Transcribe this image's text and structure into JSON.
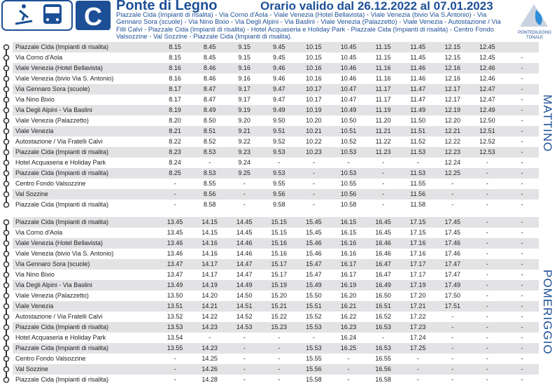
{
  "header": {
    "line": "C",
    "title": "Ponte di Legno",
    "validity": "Orario valido dal 26.12.2022 al 07.01.2023",
    "route": "Piazzale Cida (Impianti di risalita) - Via Corno d'Aola - Viale Venezia (Hotel Bellavista) - Viale Venezia (bivio Via S.Antonio) - Via Gennaro Sora (scuole) - Via Nino Bixio - Via Degli Alpini - Via Baslini - Viale Venezia (Palazzetto) - Viale Venezia - Autostazione / Via Filli Calvi - Piazzale Cida (Impianti di risalita) - Hotel Acquaseria e Holiday Park - Piazzale Cida (Impianti di risalita) - Centro Fondo Valsozzine - Val Sozzine - Piazzale Cida (Impianti di risalita).",
    "logo": "PONTEDILEGNO TONALE"
  },
  "sections": [
    {
      "label": "MATTINO",
      "rows": [
        {
          "stop": "Piazzale Cida (Impianti di risalita)",
          "times": [
            "8.15",
            "8.45",
            "9.15",
            "9.45",
            "10.15",
            "10.45",
            "11.15",
            "11.45",
            "12.15",
            "12.45",
            null
          ]
        },
        {
          "stop": "Via Corno d'Aola",
          "times": [
            "8.15",
            "8.45",
            "9.15",
            "9.45",
            "10.15",
            "10.45",
            "11.15",
            "11.45",
            "12.15",
            "12.45",
            "-"
          ]
        },
        {
          "stop": "Viale Venezia (Hotel Bellavista)",
          "times": [
            "8.16",
            "8.46",
            "9.16",
            "9.46",
            "10.16",
            "10.46",
            "11.16",
            "11.46",
            "12.16",
            "12.46",
            "-"
          ]
        },
        {
          "stop": "Viale Venezia (bivio Via S. Antonio)",
          "times": [
            "8.16",
            "8.46",
            "9.16",
            "9.46",
            "10.16",
            "10.46",
            "11.16",
            "11.46",
            "12.16",
            "12.46",
            "-"
          ]
        },
        {
          "stop": "Via Gennaro Sora (scuole)",
          "times": [
            "8.17",
            "8.47",
            "9.17",
            "9.47",
            "10.17",
            "10.47",
            "11.17",
            "11.47",
            "12.17",
            "12.47",
            "-"
          ]
        },
        {
          "stop": "Via Nino Bixio",
          "times": [
            "8.17",
            "8.47",
            "9.17",
            "9.47",
            "10.17",
            "10.47",
            "11.17",
            "11.47",
            "12.17",
            "12.47",
            "-"
          ]
        },
        {
          "stop": "Via Degli Alpini - Via Baslini",
          "times": [
            "8.19",
            "8.49",
            "9.19",
            "9.49",
            "10.19",
            "10.49",
            "11.19",
            "11.49",
            "12.19",
            "12.49",
            "-"
          ]
        },
        {
          "stop": "Viale Venezia (Palazzetto)",
          "times": [
            "8.20",
            "8.50",
            "9.20",
            "9.50",
            "10.20",
            "10.50",
            "11.20",
            "11.50",
            "12.20",
            "12.50",
            "-"
          ]
        },
        {
          "stop": "Viale Venezia",
          "times": [
            "8.21",
            "8.51",
            "9.21",
            "9.51",
            "10.21",
            "10.51",
            "11.21",
            "11.51",
            "12.21",
            "12.51",
            "-"
          ]
        },
        {
          "stop": "Autostazione / Via Fratelli Calvi",
          "times": [
            "8.22",
            "8.52",
            "9.22",
            "9.52",
            "10.22",
            "10.52",
            "11.22",
            "11.52",
            "12.22",
            "12.52",
            "-"
          ]
        },
        {
          "stop": "Piazzale Cida (Impianti di risalita)",
          "times": [
            "8.23",
            "8.53",
            "9.23",
            "9.53",
            "10.23",
            "10.53",
            "11.23",
            "11.53",
            "12.23",
            "12.53",
            "-"
          ]
        },
        {
          "stop": "Hotel Acquaseria e Holiday Park",
          "times": [
            "8.24",
            "-",
            "9.24",
            "-",
            "-",
            "-",
            "-",
            "-",
            "12.24",
            "-",
            "-"
          ]
        },
        {
          "stop": "Piazzale Cida (Impianti di risalita)",
          "times": [
            "8.25",
            "8.53",
            "9.25",
            "9.53",
            "-",
            "10.53",
            "-",
            "11.53",
            "12.25",
            "-",
            "-"
          ]
        },
        {
          "stop": "Centro Fondo Valsozzine",
          "times": [
            "-",
            "8.55",
            "-",
            "9.55",
            "-",
            "10.55",
            "-",
            "11.55",
            "-",
            "-",
            "-"
          ]
        },
        {
          "stop": "Val Sozzine",
          "times": [
            "-",
            "8.56",
            "-",
            "9.56",
            "-",
            "10.56",
            "-",
            "11.56",
            "-",
            "-",
            "-"
          ]
        },
        {
          "stop": "Piazzale Cida (Impianti di risalita)",
          "times": [
            "-",
            "8.58",
            "-",
            "9.58",
            "-",
            "10.58",
            "-",
            "11.58",
            "-",
            "-",
            "-"
          ]
        }
      ]
    },
    {
      "label": "POMERIGGIO",
      "rows": [
        {
          "stop": "Piazzale Cida (Impianti di risalita)",
          "times": [
            "13.45",
            "14.15",
            "14.45",
            "15.15",
            "15.45",
            "16.15",
            "16.45",
            "17.15",
            "17.45",
            "-",
            "-"
          ]
        },
        {
          "stop": "Via Corno d'Aola",
          "times": [
            "13.45",
            "14.15",
            "14.45",
            "15.15",
            "15.45",
            "16.15",
            "16.45",
            "17.15",
            "17.45",
            "-",
            "-"
          ]
        },
        {
          "stop": "Viale Venezia (Hotel Bellavista)",
          "times": [
            "13.46",
            "14.16",
            "14.46",
            "15.16",
            "15.46",
            "16.16",
            "16.46",
            "17.16",
            "17.46",
            "-",
            "-"
          ]
        },
        {
          "stop": "Viale Venezia (bivio Via S. Antonio)",
          "times": [
            "13.46",
            "14.16",
            "14.46",
            "15.16",
            "15.46",
            "16.16",
            "16.46",
            "17.16",
            "17.46",
            "-",
            "-"
          ]
        },
        {
          "stop": "Via Gennaro Sora (scuole)",
          "times": [
            "13.47",
            "14.17",
            "14.47",
            "15.17",
            "15.47",
            "16.17",
            "16.47",
            "17.17",
            "17.47",
            "-",
            "-"
          ]
        },
        {
          "stop": "Via Nino Bixio",
          "times": [
            "13.47",
            "14.17",
            "14.47",
            "15.17",
            "15.47",
            "16.17",
            "16.47",
            "17.17",
            "17.47",
            "-",
            "-"
          ]
        },
        {
          "stop": "Via Degli Alpini - Via Baslini",
          "times": [
            "13.49",
            "14.19",
            "14.49",
            "15.19",
            "15.49",
            "16.19",
            "16.49",
            "17.19",
            "17.49",
            "-",
            "-"
          ]
        },
        {
          "stop": "Viale Venezia (Palazzetto)",
          "times": [
            "13.50",
            "14.20",
            "14.50",
            "15.20",
            "15.50",
            "16.20",
            "16.50",
            "17.20",
            "17.50",
            "-",
            "-"
          ]
        },
        {
          "stop": "Viale Venezia",
          "times": [
            "13.51",
            "14.21",
            "14.51",
            "15.21",
            "15.51",
            "16.21",
            "16.51",
            "17.21",
            "17.51",
            "-",
            "-"
          ]
        },
        {
          "stop": "Autostazione / Via Fratelli Calvi",
          "times": [
            "13.52",
            "14.22",
            "14.52",
            "15.22",
            "15.52",
            "16.22",
            "16.52",
            "17.22",
            "-",
            "-",
            "-"
          ]
        },
        {
          "stop": "Piazzale Cida (Impianti di risalita)",
          "times": [
            "13.53",
            "14.23",
            "14.53",
            "15.23",
            "15.53",
            "16.23",
            "16.53",
            "17.23",
            "-",
            "-",
            "-"
          ]
        },
        {
          "stop": "Hotel Acquaseria e Holiday Park",
          "times": [
            "13.54",
            "-",
            "-",
            "-",
            "-",
            "16.24",
            "-",
            "17.24",
            "-",
            "-",
            "-"
          ]
        },
        {
          "stop": "Piazzale Cida (Impianti di risalita)",
          "times": [
            "13.55",
            "14.23",
            "-",
            "-",
            "15.53",
            "16.25",
            "16.53",
            "17.25",
            "-",
            "-",
            "-"
          ]
        },
        {
          "stop": "Centro Fondo Valsozzine",
          "times": [
            "-",
            "14.25",
            "-",
            "-",
            "15.55",
            "-",
            "16.55",
            "-",
            "-",
            "-",
            "-"
          ]
        },
        {
          "stop": "Val Sozzine",
          "times": [
            "-",
            "14.26",
            "-",
            "-",
            "15.56",
            "-",
            "16.56",
            "-",
            "-",
            "-",
            "-"
          ]
        },
        {
          "stop": "Piazzale Cida (Impianti di risalita)",
          "times": [
            "-",
            "14.28",
            "-",
            "-",
            "15.58",
            "-",
            "16.58",
            "-",
            "-",
            "-",
            "-"
          ]
        }
      ]
    }
  ]
}
